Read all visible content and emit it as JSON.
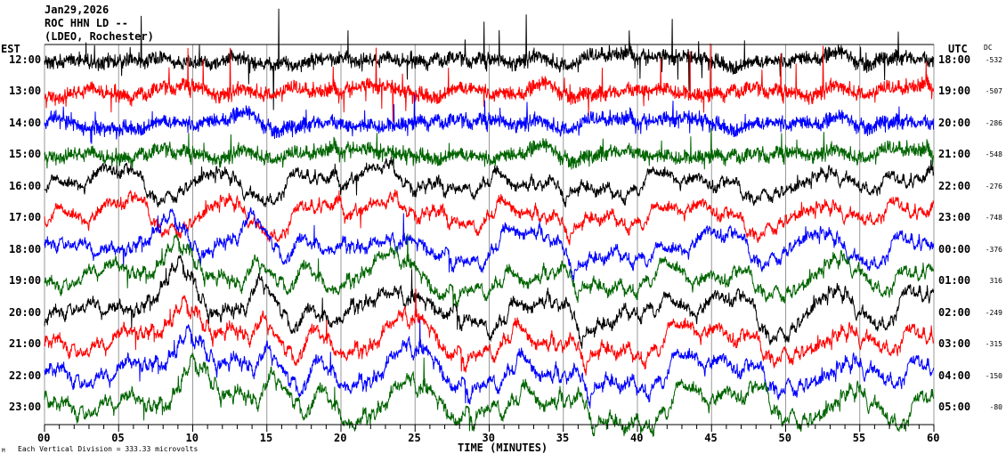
{
  "chart_data": {
    "type": "line",
    "title_lines": [
      "Jan29,2026",
      "ROC HHN LD --",
      "(LDEO, Rochester)"
    ],
    "left_axis_title": "EST",
    "right_axis_title": "UTC",
    "dc_title": "DC",
    "xlabel": "TIME (MINUTES)",
    "xlim": [
      0,
      60
    ],
    "x_ticks": [
      "00",
      "05",
      "10",
      "15",
      "20",
      "25",
      "30",
      "35",
      "40",
      "45",
      "50",
      "55",
      "60"
    ],
    "grid": true,
    "scale_note": "Each Vertical Division =   333.33 microvolts",
    "corner_mark": "M",
    "colors": [
      "#000000",
      "#ff0000",
      "#0000ff",
      "#006400"
    ],
    "rows": [
      {
        "est": "12:00",
        "utc": "18:00",
        "dc": "-532"
      },
      {
        "est": "13:00",
        "utc": "19:00",
        "dc": "-507"
      },
      {
        "est": "14:00",
        "utc": "20:00",
        "dc": "-286"
      },
      {
        "est": "15:00",
        "utc": "21:00",
        "dc": "-548"
      },
      {
        "est": "16:00",
        "utc": "22:00",
        "dc": "-276"
      },
      {
        "est": "17:00",
        "utc": "23:00",
        "dc": "-748"
      },
      {
        "est": "18:00",
        "utc": "00:00",
        "dc": "-376"
      },
      {
        "est": "19:00",
        "utc": "01:00",
        "dc": "316"
      },
      {
        "est": "20:00",
        "utc": "02:00",
        "dc": "-249"
      },
      {
        "est": "21:00",
        "utc": "03:00",
        "dc": "-315"
      },
      {
        "est": "22:00",
        "utc": "04:00",
        "dc": "-150"
      },
      {
        "est": "23:00",
        "utc": "05:00",
        "dc": "-80"
      }
    ]
  }
}
